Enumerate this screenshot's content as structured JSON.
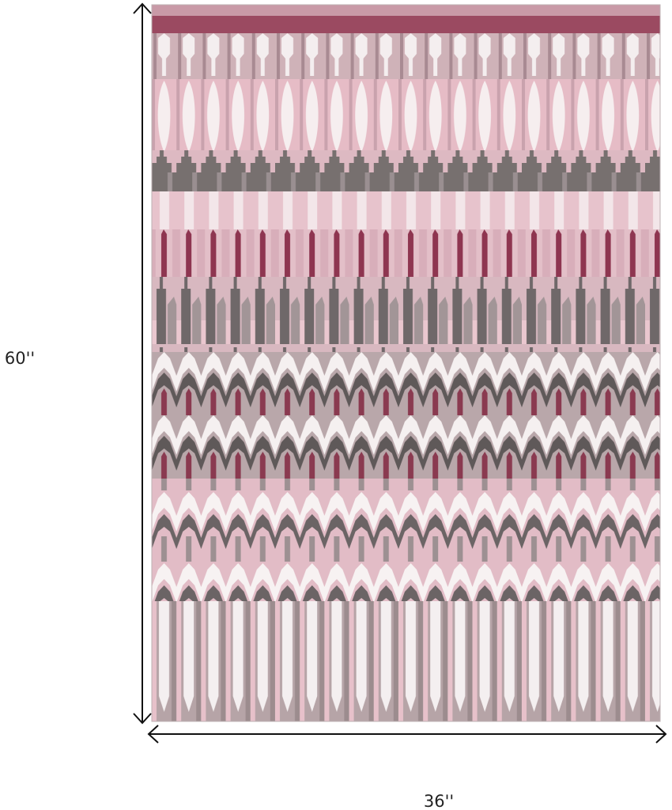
{
  "dimensions": {
    "height": "60''",
    "width": "36''"
  }
}
